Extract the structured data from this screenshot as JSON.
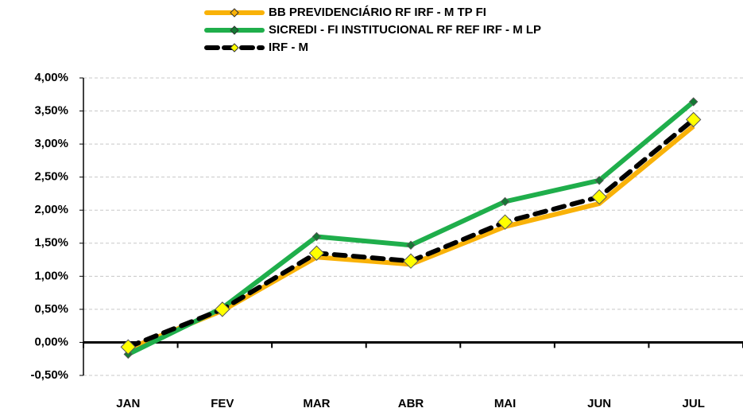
{
  "chart_data": {
    "type": "line",
    "categories": [
      "JAN",
      "FEV",
      "MAR",
      "ABR",
      "MAI",
      "JUN",
      "JUL"
    ],
    "series": [
      {
        "name": "BB PREVIDENCIÁRIO RF IRF - M TP FI",
        "color": "#f9b208",
        "marker_color": "#f9b208",
        "marker_size": 5,
        "dashed": false,
        "values": [
          -0.1,
          0.48,
          1.29,
          1.18,
          1.75,
          2.1,
          3.27
        ]
      },
      {
        "name": "SICREDI - FI INSTITUCIONAL RF REF IRF - M LP",
        "color": "#1fae4b",
        "marker_color": "#137a33",
        "marker_size": 5,
        "dashed": false,
        "values": [
          -0.18,
          0.52,
          1.6,
          1.47,
          2.13,
          2.45,
          3.64
        ]
      },
      {
        "name": "IRF - M",
        "color": "#000000",
        "marker_color": "#ffff00",
        "marker_size": 9,
        "dashed": true,
        "values": [
          -0.07,
          0.5,
          1.35,
          1.23,
          1.82,
          2.2,
          3.37
        ]
      }
    ],
    "ylim": [
      -0.5,
      4.0
    ],
    "yticks": [
      {
        "value": -0.5,
        "label": "-0,50%"
      },
      {
        "value": 0,
        "label": "0,00%"
      },
      {
        "value": 0.5,
        "label": "0,50%"
      },
      {
        "value": 1.0,
        "label": "1,00%"
      },
      {
        "value": 1.5,
        "label": "1,50%"
      },
      {
        "value": 2.0,
        "label": "2,00%"
      },
      {
        "value": 2.5,
        "label": "2,50%"
      },
      {
        "value": 3.0,
        "label": "3,00%"
      },
      {
        "value": 3.5,
        "label": "3,50%"
      },
      {
        "value": 4.0,
        "label": "4,00%"
      }
    ],
    "grid": true
  }
}
